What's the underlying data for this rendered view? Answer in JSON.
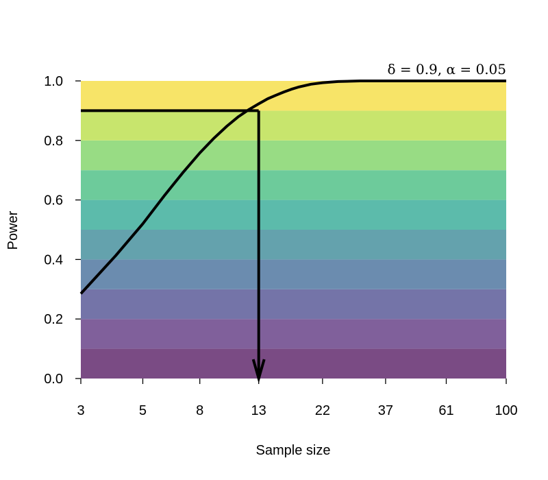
{
  "chart_data": {
    "type": "line",
    "title": "",
    "annotation": "δ = 0.9, α = 0.05",
    "xlabel": "Sample size",
    "ylabel": "Power",
    "x_scale": "log",
    "xlim": [
      3,
      100
    ],
    "ylim": [
      0,
      1
    ],
    "x_ticks": [
      3,
      5,
      8,
      13,
      22,
      37,
      61,
      100
    ],
    "y_ticks": [
      "0.0",
      "0.2",
      "0.4",
      "0.6",
      "0.8",
      "1.0"
    ],
    "y_tick_values": [
      0,
      0.2,
      0.4,
      0.6,
      0.8,
      1.0
    ],
    "grid": false,
    "background_bands": {
      "edges": [
        0,
        0.1,
        0.2,
        0.3,
        0.4,
        0.5,
        0.6,
        0.7,
        0.8,
        0.9,
        1.0
      ],
      "colors": [
        "#7a4b84",
        "#80609b",
        "#7474a8",
        "#6b8caf",
        "#64a2ad",
        "#5cbbab",
        "#6dcb9b",
        "#98dc84",
        "#c8e56d",
        "#f7e468"
      ]
    },
    "series": [
      {
        "x": [
          3,
          4,
          5,
          6,
          7,
          8,
          9,
          10,
          11,
          12,
          13,
          14,
          15,
          16,
          17,
          18,
          20,
          22,
          25,
          30,
          37,
          50,
          61,
          100
        ],
        "y": [
          0.285,
          0.413,
          0.52,
          0.617,
          0.695,
          0.758,
          0.808,
          0.848,
          0.88,
          0.904,
          0.923,
          0.94,
          0.952,
          0.963,
          0.972,
          0.979,
          0.989,
          0.994,
          0.998,
          1.0,
          1.0,
          1.0,
          1.0,
          1.0
        ],
        "color": "#000000"
      }
    ],
    "target": {
      "power": 0.9,
      "sample_size": 13,
      "line_color": "#000000"
    }
  }
}
